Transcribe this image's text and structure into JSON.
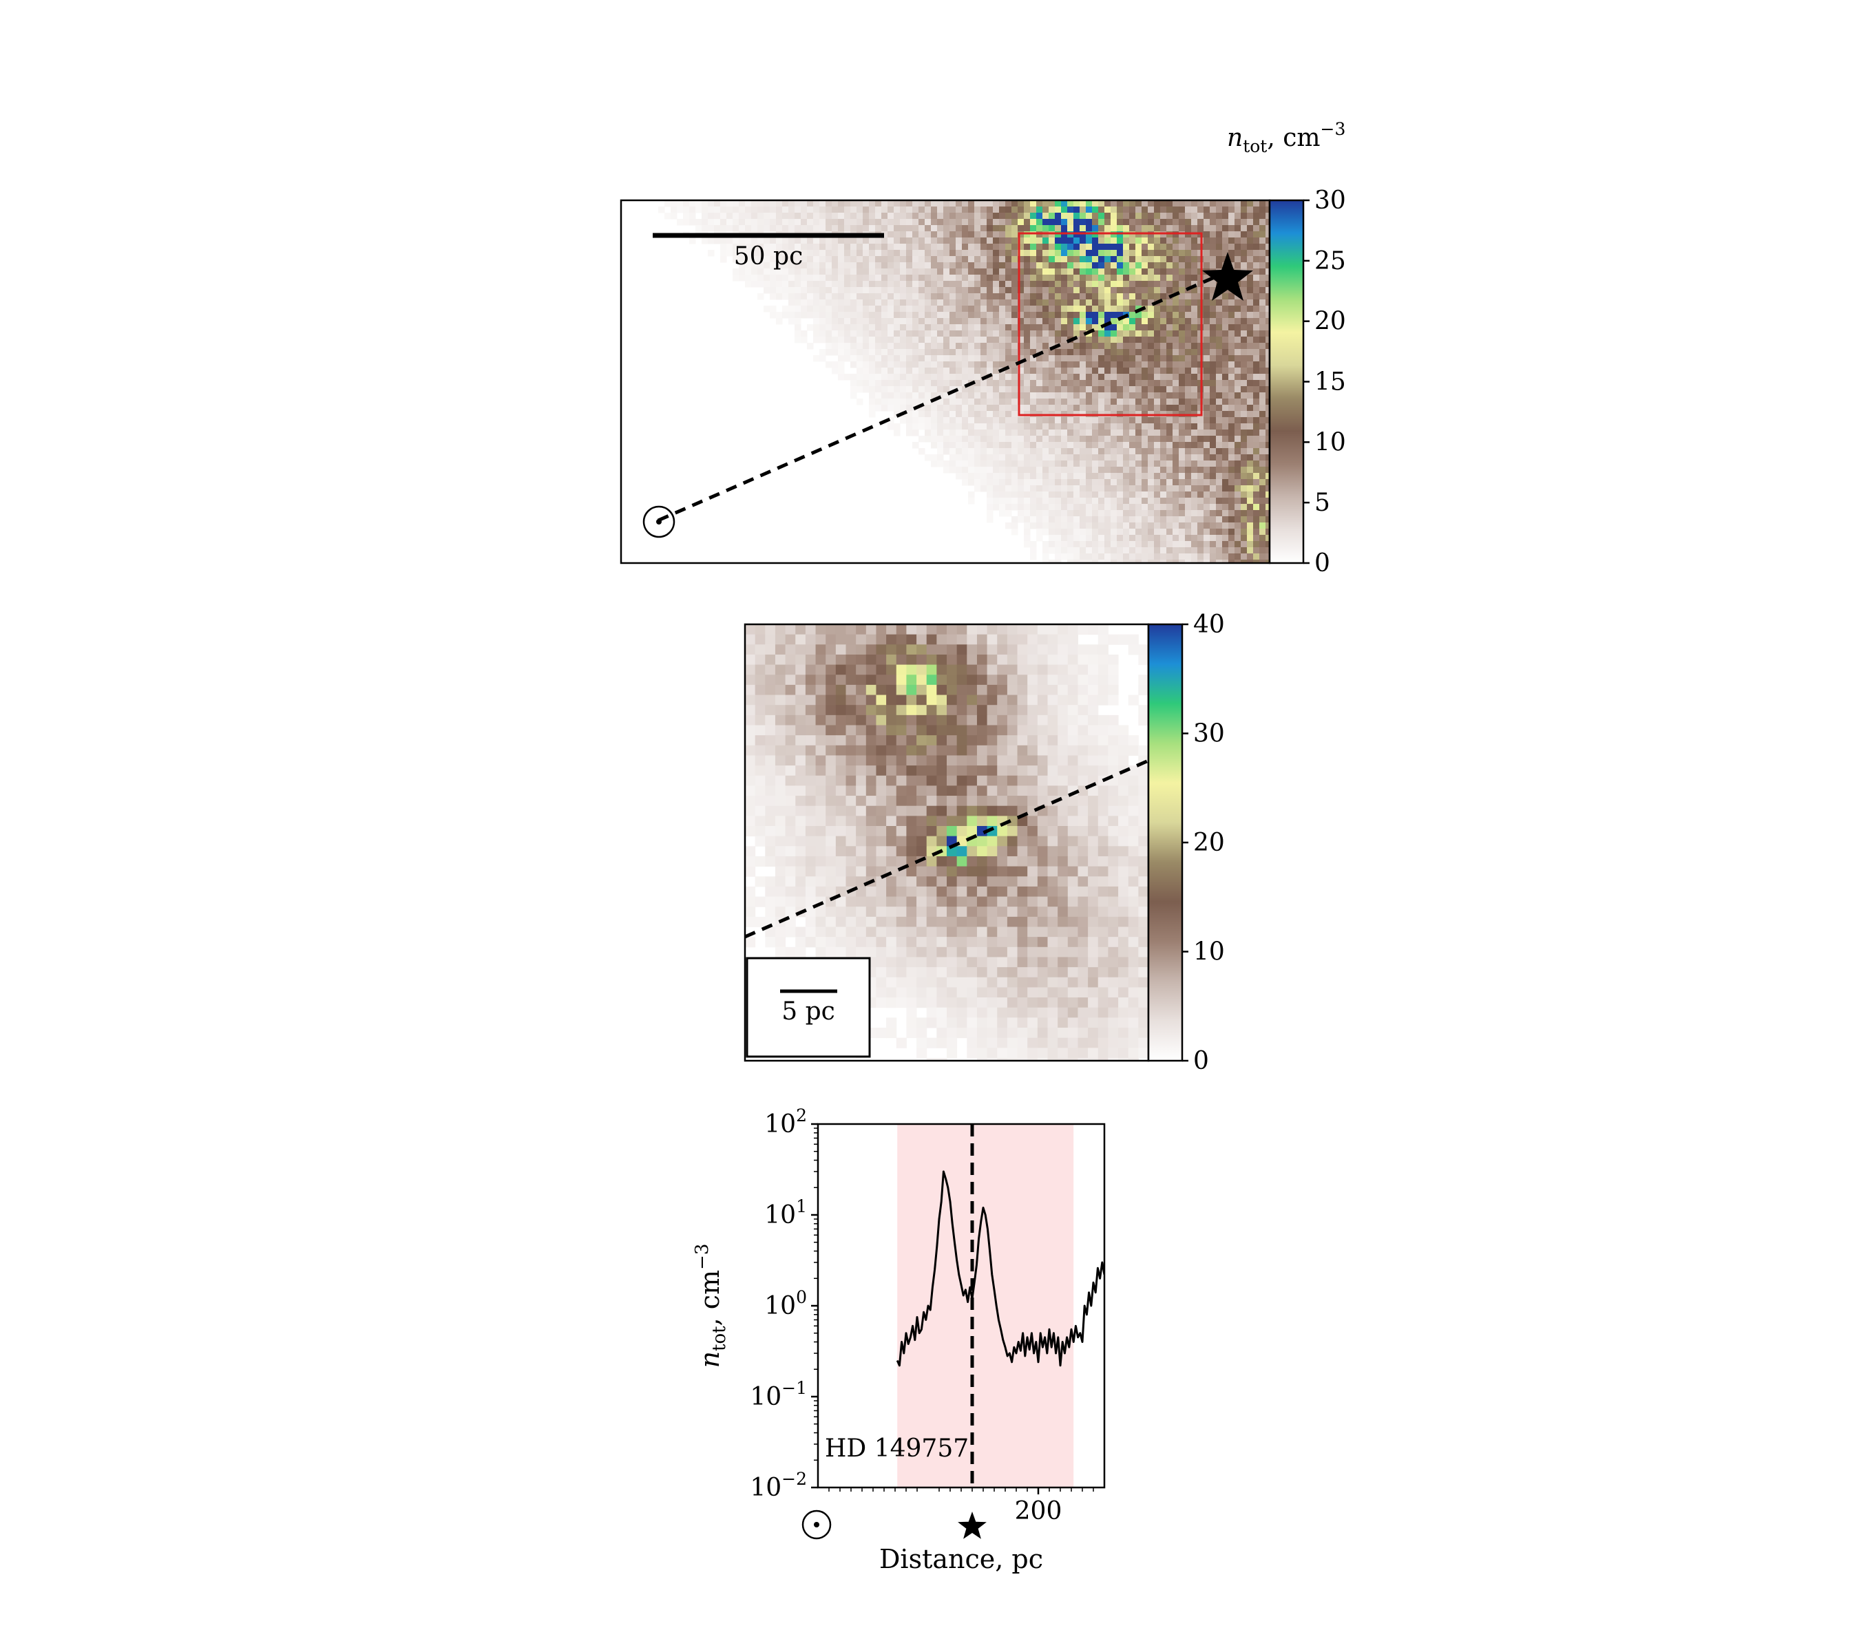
{
  "colorbar_title": {
    "base": "n",
    "sub": "tot",
    "unit": ", cm",
    "exp": "−3"
  },
  "map_top": {
    "scalebar_label": "50 pc",
    "colorbar": {
      "ticks": [
        "0",
        "5",
        "10",
        "15",
        "20",
        "25",
        "30"
      ],
      "vmin": 0,
      "vmax": 30
    }
  },
  "map_zoom": {
    "scalebar_label": "5 pc",
    "colorbar": {
      "ticks": [
        "0",
        "10",
        "20",
        "30",
        "40"
      ],
      "vmin": 0,
      "vmax": 40
    }
  },
  "colors": {
    "colormap": [
      "#ffffff",
      "#e8e0dd",
      "#c7b6ae",
      "#9c8072",
      "#7c5e4f",
      "#9a8a66",
      "#d9d79a",
      "#f4f3a2",
      "#a7e07e",
      "#2fc97a",
      "#1d8fd6",
      "#203c9c"
    ],
    "zoom_box": "#dd2222",
    "shade": "#fde3e4",
    "line": "#000000"
  },
  "chart_data": {
    "type": "line",
    "xlabel": "Distance, pc",
    "ylabel": {
      "base": "n",
      "sub": "tot",
      "unit": ", cm",
      "exp": "−3"
    },
    "yscale": "log",
    "xlim": [
      0,
      260
    ],
    "ylim": [
      0.01,
      100
    ],
    "xticks": [
      {
        "v": 200,
        "label": "200"
      }
    ],
    "yticks": [
      {
        "v": 100,
        "base": "10",
        "exp": "2"
      },
      {
        "v": 10,
        "base": "10",
        "exp": "1"
      },
      {
        "v": 1,
        "base": "10",
        "exp": "0"
      },
      {
        "v": 0.1,
        "base": "10",
        "exp": "−1"
      },
      {
        "v": 0.01,
        "base": "10",
        "exp": "−2"
      }
    ],
    "annotation": "HD 149757",
    "star_distance": 140,
    "shaded_range": [
      72,
      232
    ],
    "series": [
      {
        "x": [
          72,
          74,
          76,
          78,
          80,
          82,
          84,
          86,
          88,
          90,
          92,
          94,
          96,
          98,
          100,
          102,
          104,
          106,
          108,
          110,
          112,
          114,
          116,
          118,
          120,
          122,
          124,
          126,
          128,
          130,
          132,
          134,
          136,
          138,
          140,
          142,
          144,
          146,
          148,
          150,
          152,
          154,
          156,
          158,
          160,
          162,
          164,
          166,
          168,
          170,
          172,
          174,
          176,
          178,
          180,
          182,
          184,
          186,
          188,
          190,
          192,
          194,
          196,
          198,
          200,
          202,
          204,
          206,
          208,
          210,
          212,
          214,
          216,
          218,
          220,
          222,
          224,
          226,
          228,
          230,
          232,
          234,
          236,
          238,
          240,
          242,
          244,
          246,
          248,
          250,
          252,
          254,
          256,
          258,
          260
        ],
        "y": [
          0.25,
          0.22,
          0.4,
          0.3,
          0.5,
          0.38,
          0.45,
          0.6,
          0.42,
          0.75,
          0.5,
          0.55,
          0.85,
          0.7,
          1.0,
          0.9,
          1.6,
          2.5,
          4.5,
          9.0,
          14.0,
          30.0,
          25.0,
          20.0,
          14.0,
          8.0,
          5.0,
          3.2,
          2.2,
          1.7,
          1.3,
          1.5,
          1.1,
          1.6,
          1.2,
          1.8,
          2.8,
          5.5,
          8.5,
          12.0,
          10.0,
          7.0,
          4.0,
          2.2,
          1.5,
          1.0,
          0.7,
          0.55,
          0.42,
          0.35,
          0.28,
          0.3,
          0.24,
          0.35,
          0.3,
          0.4,
          0.32,
          0.5,
          0.28,
          0.45,
          0.33,
          0.5,
          0.3,
          0.4,
          0.24,
          0.5,
          0.35,
          0.45,
          0.3,
          0.55,
          0.35,
          0.5,
          0.3,
          0.45,
          0.22,
          0.4,
          0.3,
          0.45,
          0.35,
          0.55,
          0.4,
          0.6,
          0.45,
          0.5,
          0.4,
          1.0,
          0.8,
          1.4,
          1.0,
          1.8,
          1.4,
          2.6,
          2.0,
          3.0,
          2.2
        ]
      }
    ]
  }
}
